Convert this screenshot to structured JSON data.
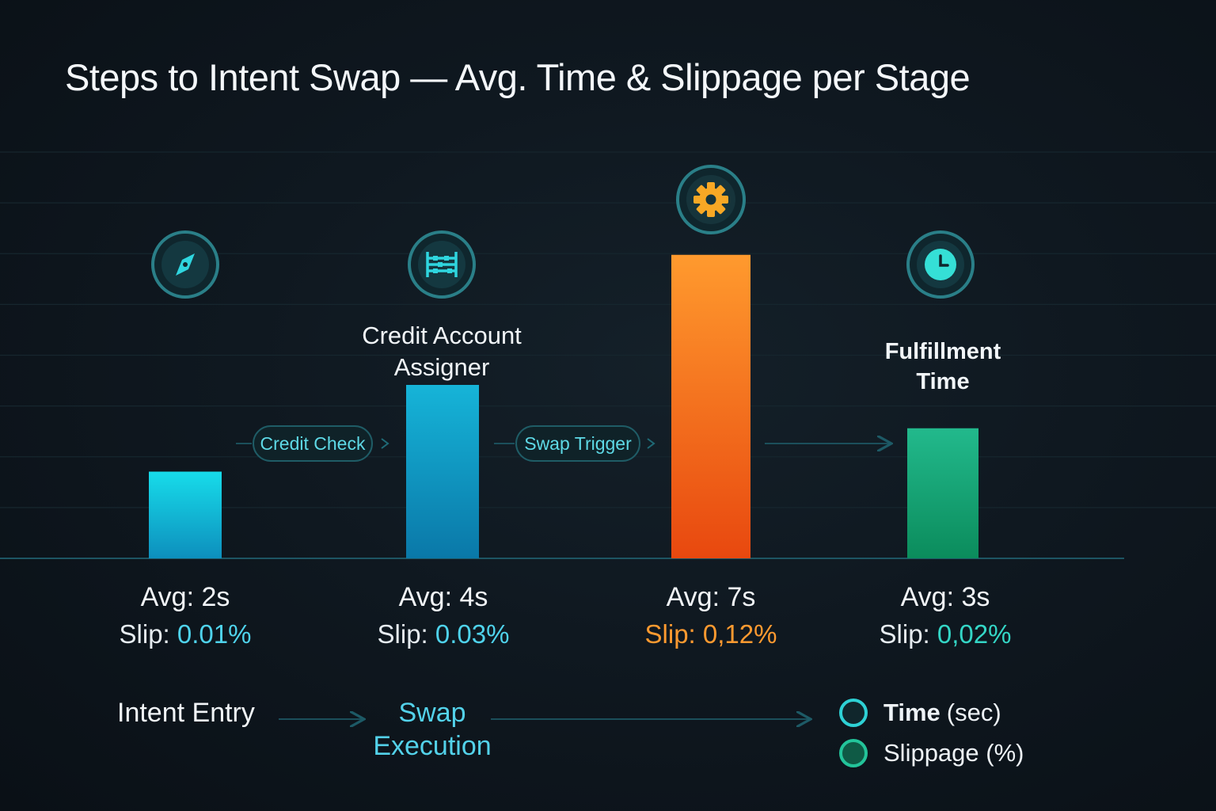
{
  "chart_data": {
    "type": "bar",
    "title": "Steps to Intent Swap — Avg. Time & Slippage per Stage",
    "categories": [
      "Intent Entry",
      "Credit Account Assigner",
      "Swap Execution",
      "Fulfillment Time"
    ],
    "series": [
      {
        "name": "Time (sec)",
        "values": [
          2,
          4,
          7,
          3
        ],
        "labels": [
          "Avg: 2s",
          "Avg: 4s",
          "Avg: 7s",
          "Avg: 3s"
        ]
      },
      {
        "name": "Slippage (%)",
        "values": [
          0.01,
          0.03,
          0.12,
          0.02
        ],
        "labels": [
          "0.01%",
          "0.03%",
          "0,12%",
          "0,02%"
        ]
      }
    ],
    "slip_prefix": "Slip:",
    "ylim": [
      0,
      8.0
    ],
    "grid": true,
    "legend": "bottom-right",
    "stage_labels": {
      "credit_account": "Credit Account\nAssigner",
      "fulfillment": "Fulfillment\nTime"
    },
    "flow_pills": [
      "Credit Check",
      "Swap Trigger"
    ],
    "bottom_flow": {
      "entry": "Intent Entry",
      "execution": "Swap\nExecution"
    },
    "legend_items": [
      {
        "strong": "Time",
        "rest": "(sec)",
        "color": "#2ed1d5"
      },
      {
        "strong": "",
        "rest": "Slippage (%)",
        "color": "#1fb88a"
      }
    ],
    "colors": {
      "bar1": [
        "#17dcea",
        "#0d8fbd"
      ],
      "bar2": [
        "#16b4d8",
        "#0a78a8"
      ],
      "bar3": [
        "#ff9a2e",
        "#e8480f"
      ],
      "bar4": [
        "#22b98c",
        "#0b8c5c"
      ],
      "accent_cyan": "#4fd3ec",
      "accent_orange": "#ff9a30"
    },
    "icons": [
      "compass-icon",
      "abacus-icon",
      "gear-icon",
      "clock-icon"
    ]
  }
}
